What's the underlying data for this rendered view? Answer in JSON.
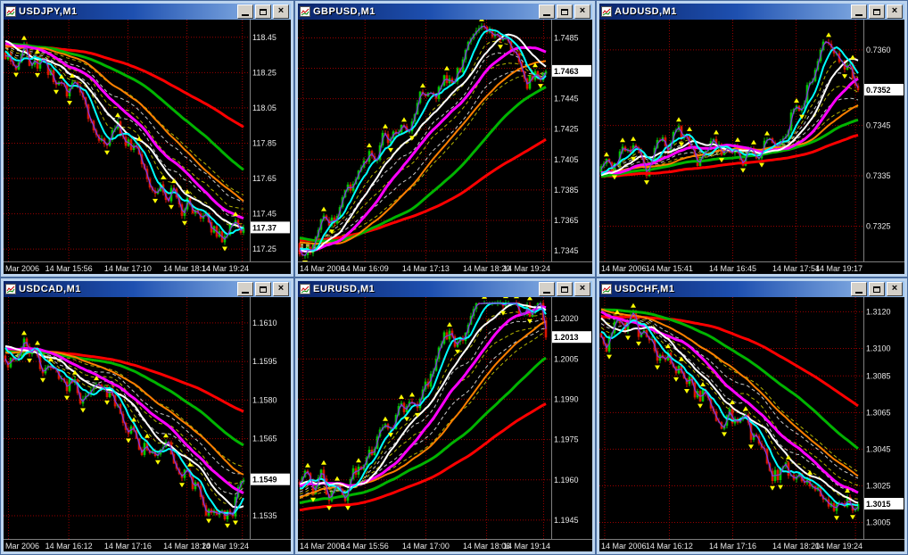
{
  "chrome": {
    "close_glyph": "×"
  },
  "colors": {
    "background": "#000000",
    "grid": "#990000",
    "axis_text": "#E8E8E8",
    "badge_bg": "#FFFFFF",
    "badge_text": "#000000",
    "candle_up": "#00C800",
    "candle_down": "#DC1400",
    "fractal": "#FFFF00",
    "fan_yellow": "#B4B400",
    "fan_white": "#C8C8C8",
    "ma_colors": {
      "fast_purple": "#8038E0",
      "cyan": "#00FFFF",
      "white": "#FFFFFF",
      "magenta": "#FF00FF",
      "orange": "#FF8000",
      "green": "#00B400",
      "red": "#FF0000"
    }
  },
  "windows": [
    {
      "title": "USDJPY,M1",
      "price_labels": [
        "118.45",
        "118.25",
        "118.05",
        "117.85",
        "117.65",
        "117.45",
        "117.25"
      ],
      "current_price": "117.37",
      "time_labels": [
        "Mar 2006",
        "14 Mar 15:56",
        "14 Mar 17:10",
        "14 Mar 18:14",
        "14 Mar 19:24"
      ],
      "chart_data": {
        "type": "candlestick",
        "symbol": "USDJPY",
        "timeframe": "M1",
        "trend": "down",
        "y_min": 117.18,
        "y_max": 118.55,
        "last": 117.37,
        "path": [
          [
            0,
            0.9
          ],
          [
            0.08,
            0.95
          ],
          [
            0.2,
            0.8
          ],
          [
            0.35,
            0.66
          ],
          [
            0.5,
            0.52
          ],
          [
            0.65,
            0.38
          ],
          [
            0.8,
            0.26
          ],
          [
            0.92,
            0.1
          ],
          [
            1,
            0.14
          ]
        ]
      }
    },
    {
      "title": "GBPUSD,M1",
      "price_labels": [
        "1.7485",
        "1.7465",
        "1.7445",
        "1.7425",
        "1.7405",
        "1.7385",
        "1.7365",
        "1.7345"
      ],
      "current_price": "1.7463",
      "time_labels": [
        "14 Mar 2006",
        "14 Mar 16:09",
        "14 Mar 17:13",
        "14 Mar 18:20",
        "14 Mar 19:24"
      ],
      "chart_data": {
        "type": "candlestick",
        "symbol": "GBPUSD",
        "timeframe": "M1",
        "trend": "up",
        "y_min": 1.7338,
        "y_max": 1.7497,
        "last": 1.7463,
        "path": [
          [
            0,
            0.1
          ],
          [
            0.12,
            0.13
          ],
          [
            0.25,
            0.3
          ],
          [
            0.4,
            0.55
          ],
          [
            0.55,
            0.72
          ],
          [
            0.7,
            0.88
          ],
          [
            0.82,
            0.93
          ],
          [
            0.92,
            0.8
          ],
          [
            1,
            0.79
          ]
        ]
      }
    },
    {
      "title": "AUDUSD,M1",
      "price_labels": [
        "0.7360",
        "0.7345",
        "0.7335",
        "0.7325"
      ],
      "current_price": "0.7352",
      "time_labels": [
        "14 Mar 2006",
        "14 Mar 15:41",
        "14 Mar 16:45",
        "14 Mar 17:54",
        "14 Mar 19:17"
      ],
      "chart_data": {
        "type": "candlestick",
        "symbol": "AUDUSD",
        "timeframe": "M1",
        "trend": "up",
        "y_min": 0.7318,
        "y_max": 0.7366,
        "last": 0.7352,
        "path": [
          [
            0,
            0.35
          ],
          [
            0.15,
            0.42
          ],
          [
            0.3,
            0.52
          ],
          [
            0.45,
            0.4
          ],
          [
            0.6,
            0.55
          ],
          [
            0.72,
            0.68
          ],
          [
            0.85,
            0.85
          ],
          [
            0.93,
            0.75
          ],
          [
            1,
            0.71
          ]
        ]
      }
    },
    {
      "title": "USDCAD,M1",
      "price_labels": [
        "1.1610",
        "1.1595",
        "1.1580",
        "1.1565",
        "1.1535"
      ],
      "current_price": "1.1549",
      "time_labels": [
        "Mar 2006",
        "14 Mar 16:12",
        "14 Mar 17:16",
        "14 Mar 18:20",
        "14 Mar 19:24"
      ],
      "chart_data": {
        "type": "candlestick",
        "symbol": "USDCAD",
        "timeframe": "M1",
        "trend": "down",
        "y_min": 1.1526,
        "y_max": 1.162,
        "last": 1.1549,
        "path": [
          [
            0,
            0.8
          ],
          [
            0.12,
            0.84
          ],
          [
            0.25,
            0.7
          ],
          [
            0.4,
            0.58
          ],
          [
            0.55,
            0.48
          ],
          [
            0.7,
            0.34
          ],
          [
            0.85,
            0.18
          ],
          [
            0.93,
            0.1
          ],
          [
            1,
            0.245
          ]
        ]
      }
    },
    {
      "title": "EURUSD,M1",
      "price_labels": [
        "1.2020",
        "1.2005",
        "1.1990",
        "1.1975",
        "1.1960",
        "1.1945"
      ],
      "current_price": "1.2013",
      "time_labels": [
        "14 Mar 2006",
        "14 Mar 15:56",
        "14 Mar 17:00",
        "14 Mar 18:06",
        "14 Mar 19:14"
      ],
      "chart_data": {
        "type": "candlestick",
        "symbol": "EURUSD",
        "timeframe": "M1",
        "trend": "up",
        "y_min": 1.1938,
        "y_max": 1.2028,
        "last": 1.2013,
        "path": [
          [
            0,
            0.15
          ],
          [
            0.15,
            0.12
          ],
          [
            0.3,
            0.28
          ],
          [
            0.45,
            0.52
          ],
          [
            0.6,
            0.78
          ],
          [
            0.75,
            0.9
          ],
          [
            0.88,
            0.93
          ],
          [
            1,
            0.833
          ]
        ]
      }
    },
    {
      "title": "USDCHF,M1",
      "price_labels": [
        "1.3120",
        "1.3100",
        "1.3085",
        "1.3065",
        "1.3045",
        "1.3025",
        "1.3005"
      ],
      "current_price": "1.3015",
      "time_labels": [
        "14 Mar 2006",
        "14 Mar 16:12",
        "14 Mar 17:16",
        "14 Mar 18:20",
        "14 Mar 19:24"
      ],
      "chart_data": {
        "type": "candlestick",
        "symbol": "USDCHF",
        "timeframe": "M1",
        "trend": "down",
        "y_min": 1.2996,
        "y_max": 1.3128,
        "last": 1.3015,
        "path": [
          [
            0,
            0.92
          ],
          [
            0.12,
            0.88
          ],
          [
            0.25,
            0.78
          ],
          [
            0.4,
            0.62
          ],
          [
            0.55,
            0.46
          ],
          [
            0.7,
            0.3
          ],
          [
            0.85,
            0.15
          ],
          [
            0.93,
            0.08
          ],
          [
            1,
            0.144
          ]
        ]
      }
    }
  ]
}
